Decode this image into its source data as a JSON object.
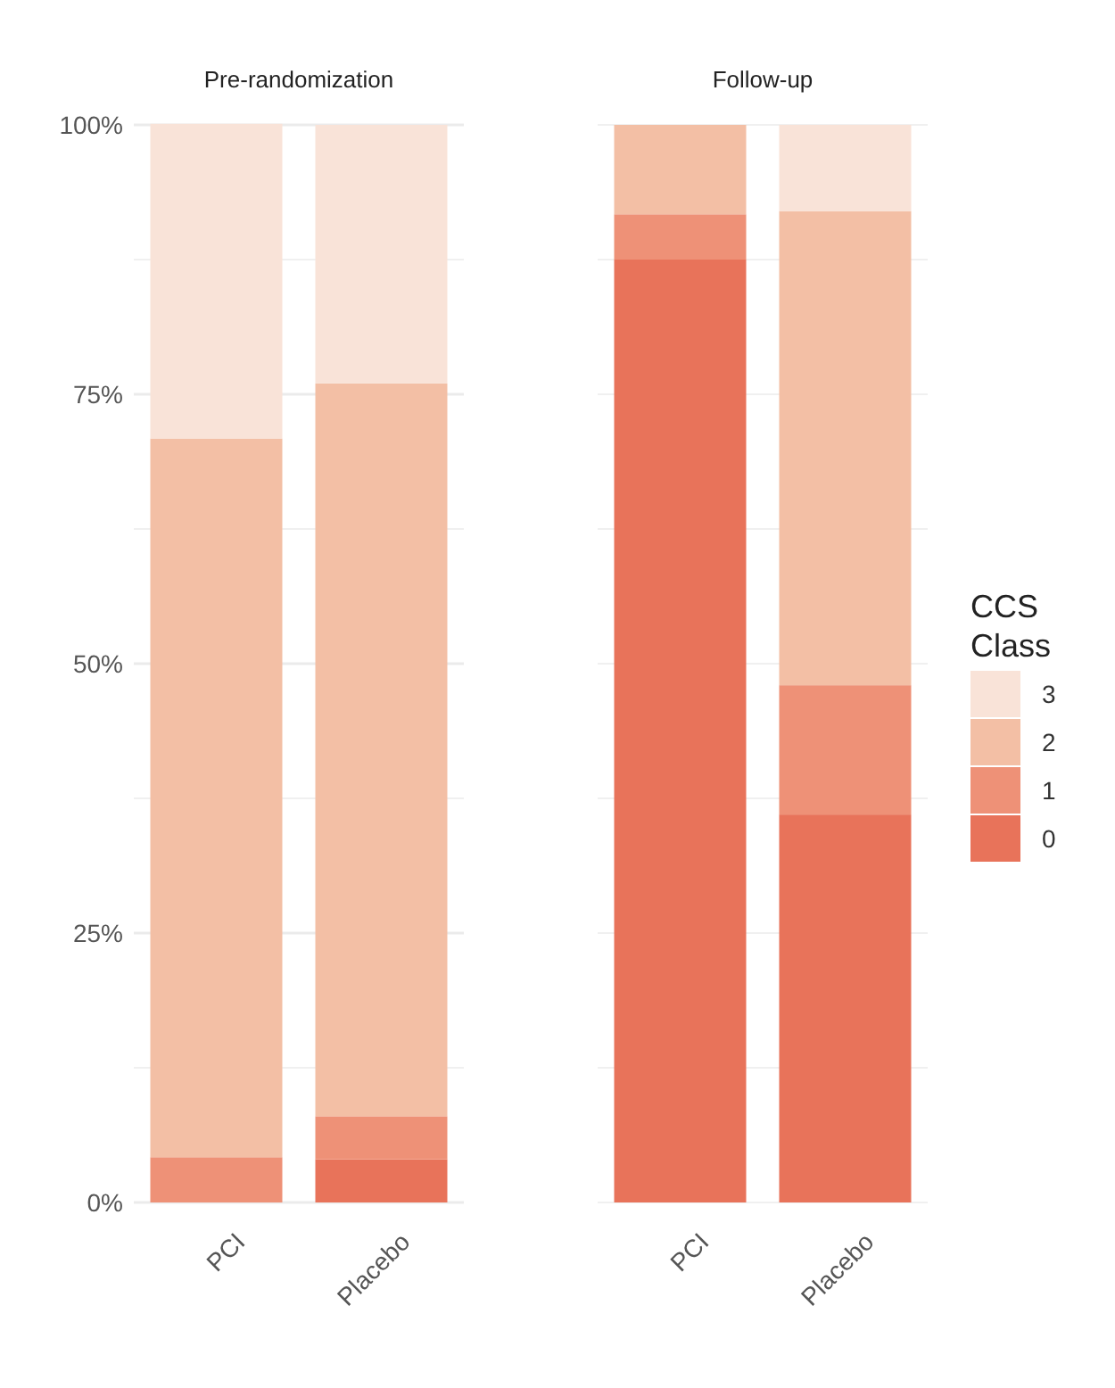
{
  "chart_data": [
    {
      "type": "bar",
      "title": "Pre-randomization",
      "categories": [
        "PCI",
        "Placebo"
      ],
      "stacked": true,
      "ylim": [
        0,
        100
      ],
      "yticks": [
        {
          "value": 0,
          "label": "0%"
        },
        {
          "value": 12.5,
          "label": null
        },
        {
          "value": 25,
          "label": "25%"
        },
        {
          "value": 37.5,
          "label": null
        },
        {
          "value": 50,
          "label": "50%"
        },
        {
          "value": 62.5,
          "label": null
        },
        {
          "value": 75,
          "label": "75%"
        },
        {
          "value": 87.5,
          "label": null
        },
        {
          "value": 100,
          "label": "100%"
        }
      ],
      "grid": "y",
      "legend": "right",
      "legend_title": "CCS Class",
      "series": [
        {
          "name": "0",
          "color": "#e8735a",
          "values": [
            0,
            4
          ]
        },
        {
          "name": "1",
          "color": "#ee9177",
          "values": [
            4.2,
            4
          ]
        },
        {
          "name": "2",
          "color": "#f3bfa5",
          "values": [
            66.7,
            68
          ]
        },
        {
          "name": "3",
          "color": "#f9e3d8",
          "values": [
            29.2,
            24
          ]
        }
      ]
    },
    {
      "type": "bar",
      "title": "Follow-up",
      "categories": [
        "PCI",
        "Placebo"
      ],
      "stacked": true,
      "ylim": [
        0,
        100
      ],
      "yticks": [
        {
          "value": 0,
          "label": null
        },
        {
          "value": 12.5,
          "label": null
        },
        {
          "value": 25,
          "label": null
        },
        {
          "value": 37.5,
          "label": null
        },
        {
          "value": 50,
          "label": null
        },
        {
          "value": 62.5,
          "label": null
        },
        {
          "value": 75,
          "label": null
        },
        {
          "value": 87.5,
          "label": null
        },
        {
          "value": 100,
          "label": null
        }
      ],
      "grid": "y",
      "tick_labels": "x",
      "series": [
        {
          "color": "#e8735a",
          "values": [
            87.5,
            36
          ]
        },
        {
          "color": "#ee9177",
          "values": [
            4.2,
            12
          ]
        },
        {
          "color": "#f3bfa5",
          "values": [
            8.3,
            44
          ]
        },
        {
          "color": "#f9e3d8",
          "values": [
            0,
            8
          ]
        }
      ]
    }
  ]
}
